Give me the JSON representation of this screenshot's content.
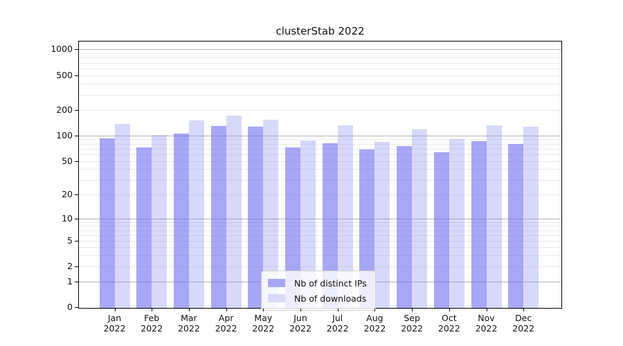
{
  "title": "clusterStab 2022",
  "legend": {
    "items": [
      {
        "label": "Nb of distinct IPs",
        "swatch_color": "#a8a8f6"
      },
      {
        "label": "Nb of downloads",
        "swatch_color": "#d9d9fa"
      }
    ]
  },
  "y_axis": {
    "ticks": [
      {
        "label": "1000",
        "value": 1000
      },
      {
        "label": "500",
        "value": 500
      },
      {
        "label": "200",
        "value": 200
      },
      {
        "label": "100",
        "value": 100
      },
      {
        "label": "50",
        "value": 50
      },
      {
        "label": "20",
        "value": 20
      },
      {
        "label": "10",
        "value": 10
      },
      {
        "label": "5",
        "value": 5
      },
      {
        "label": "2",
        "value": 2
      },
      {
        "label": "1",
        "value": 1
      },
      {
        "label": "0",
        "value": 0
      }
    ]
  },
  "x_axis": {
    "categories": [
      {
        "month": "Jan",
        "year": "2022"
      },
      {
        "month": "Feb",
        "year": "2022"
      },
      {
        "month": "Mar",
        "year": "2022"
      },
      {
        "month": "Apr",
        "year": "2022"
      },
      {
        "month": "May",
        "year": "2022"
      },
      {
        "month": "Jun",
        "year": "2022"
      },
      {
        "month": "Jul",
        "year": "2022"
      },
      {
        "month": "Aug",
        "year": "2022"
      },
      {
        "month": "Sep",
        "year": "2022"
      },
      {
        "month": "Oct",
        "year": "2022"
      },
      {
        "month": "Nov",
        "year": "2022"
      },
      {
        "month": "Dec",
        "year": "2022"
      }
    ]
  },
  "colors": {
    "bar_distinct_ips": "rgba(104,104,240,0.58)",
    "bar_downloads": "rgba(125,125,238,0.30)",
    "grid_major": "#b3b3b3",
    "grid_minor": "#e9e9e9",
    "spine": "#000000"
  },
  "chart_data": {
    "type": "bar",
    "title": "clusterStab 2022",
    "y_scale": "symlog",
    "ylim": [
      0,
      1250
    ],
    "grid": true,
    "legend_position": "lower center",
    "y_ticks": [
      0,
      1,
      2,
      5,
      10,
      20,
      50,
      100,
      200,
      500,
      1000
    ],
    "categories": [
      "Jan 2022",
      "Feb 2022",
      "Mar 2022",
      "Apr 2022",
      "May 2022",
      "Jun 2022",
      "Jul 2022",
      "Aug 2022",
      "Sep 2022",
      "Oct 2022",
      "Nov 2022",
      "Dec 2022"
    ],
    "series": [
      {
        "name": "Nb of distinct IPs",
        "values": [
          92,
          73,
          106,
          130,
          126,
          73,
          81,
          68,
          75,
          63,
          86,
          79
        ]
      },
      {
        "name": "Nb of downloads",
        "values": [
          137,
          101,
          150,
          172,
          152,
          88,
          131,
          84,
          118,
          90,
          132,
          128
        ]
      }
    ]
  }
}
